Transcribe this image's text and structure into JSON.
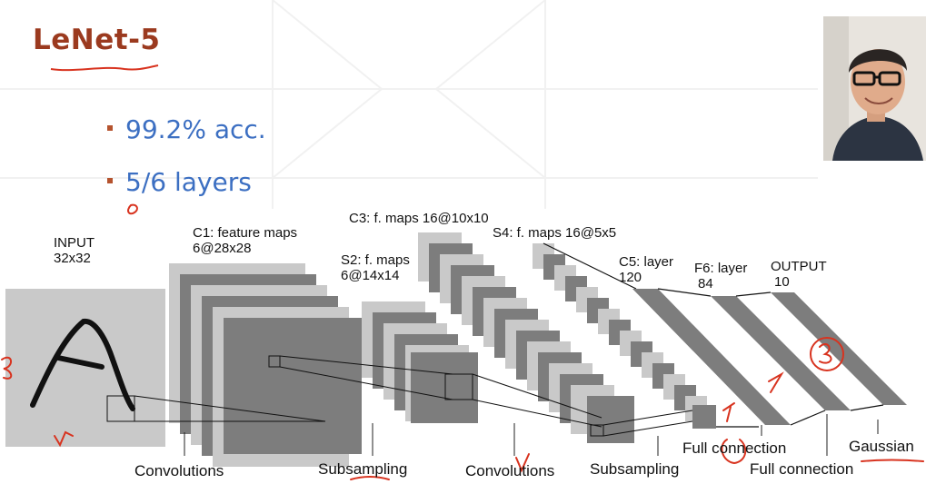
{
  "slide": {
    "title": "LeNet-5",
    "bullets": [
      "99.2% acc.",
      "5/6 layers"
    ]
  },
  "diagram": {
    "layers": {
      "input": {
        "name": "INPUT",
        "size": "32x32"
      },
      "c1": {
        "name": "C1: feature maps",
        "size": "6@28x28"
      },
      "s2": {
        "name": "S2: f. maps",
        "size": "6@14x14"
      },
      "c3": {
        "name": "C3: f. maps 16@10x10"
      },
      "s4": {
        "name": "S4: f. maps 16@5x5"
      },
      "c5": {
        "name": "C5: layer",
        "size": "120"
      },
      "f6": {
        "name": "F6: layer",
        "size": "84"
      },
      "output": {
        "name": "OUTPUT",
        "size": "10"
      }
    },
    "operations": [
      "Convolutions",
      "Subsampling",
      "Convolutions",
      "Subsampling",
      "Full connection",
      "Full connection",
      "Gaussian"
    ]
  },
  "colors": {
    "title": "#9b3a1f",
    "bullet_text": "#3c6fc2",
    "annotation_ink": "#d8331f",
    "map_light": "#c8c8c8",
    "map_dark": "#7a7a7a"
  },
  "presenter": {
    "image": "presenter-photo"
  }
}
